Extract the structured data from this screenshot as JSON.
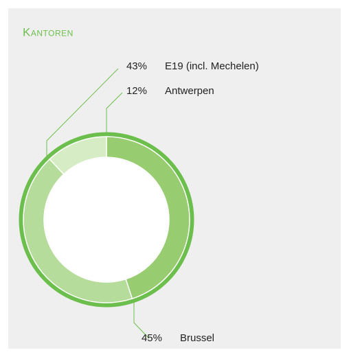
{
  "chart_data": {
    "type": "pie",
    "donut": true,
    "title": "Kantoren",
    "categories": [
      "Brussel",
      "E19 (incl. Mechelen)",
      "Antwerpen"
    ],
    "values": [
      45,
      43,
      12
    ],
    "value_labels": [
      "45%",
      "43%",
      "12%"
    ],
    "colors": [
      "#97cd70",
      "#b6dc9b",
      "#d6ecc5"
    ],
    "rim_color": "#6cbf4c"
  }
}
